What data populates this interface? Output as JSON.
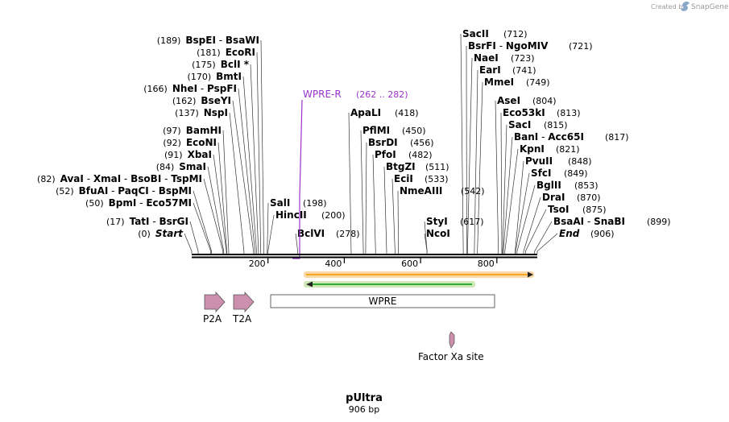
{
  "watermark": {
    "prefix": "Created by",
    "brand": "SnapGene"
  },
  "title": "pUltra",
  "subtitle": "906 bp",
  "sequence_length": 906,
  "axis_ticks": [
    "200",
    "400",
    "600",
    "800"
  ],
  "primer": {
    "name": "WPRE-R",
    "range": "(262 .. 282)",
    "color": "#9933cc"
  },
  "left_labels": [
    {
      "position": "(189)",
      "parts": [
        "BspEI",
        "BsaWI"
      ]
    },
    {
      "position": "(181)",
      "parts": [
        "EcoRI"
      ]
    },
    {
      "position": "(175)",
      "parts": [
        "BclI"
      ],
      "mark": "*"
    },
    {
      "position": "(170)",
      "parts": [
        "BmtI"
      ]
    },
    {
      "position": "(166)",
      "parts": [
        "NheI",
        "PspFI"
      ]
    },
    {
      "position": "(162)",
      "parts": [
        "BseYI"
      ]
    },
    {
      "position": "(137)",
      "parts": [
        "NspI"
      ]
    },
    {
      "position": "(97)",
      "parts": [
        "BamHI"
      ]
    },
    {
      "position": "(92)",
      "parts": [
        "EcoNI"
      ]
    },
    {
      "position": "(91)",
      "parts": [
        "XbaI"
      ]
    },
    {
      "position": "(84)",
      "parts": [
        "SmaI"
      ]
    },
    {
      "position": "(82)",
      "parts": [
        "AvaI",
        "XmaI",
        "BsoBI",
        "TspMI"
      ]
    },
    {
      "position": "(52)",
      "parts": [
        "BfuAI",
        "PaqCI",
        "BspMI"
      ]
    },
    {
      "position": "(50)",
      "parts": [
        "BpmI",
        "Eco57MI"
      ]
    },
    {
      "position": "(17)",
      "parts": [
        "TatI",
        "BsrGI"
      ]
    },
    {
      "position": "(0)",
      "parts": [
        "Start"
      ],
      "italic": true
    }
  ],
  "mid_labels": [
    {
      "parts": [
        "SalI"
      ],
      "position": "(198)"
    },
    {
      "parts": [
        "HincII"
      ],
      "position": "(200)"
    },
    {
      "parts": [
        "BclVI"
      ],
      "position": "(278)"
    }
  ],
  "center_labels": [
    {
      "parts": [
        "ApaLI"
      ],
      "position": "(418)"
    },
    {
      "parts": [
        "PflMI"
      ],
      "position": "(450)"
    },
    {
      "parts": [
        "BsrDI"
      ],
      "position": "(456)"
    },
    {
      "parts": [
        "PfoI"
      ],
      "position": "(482)"
    },
    {
      "parts": [
        "BtgZI"
      ],
      "position": "(511)"
    },
    {
      "parts": [
        "EciI"
      ],
      "position": "(533)"
    },
    {
      "parts": [
        "NmeAIII"
      ],
      "position": "(542)"
    },
    {
      "parts": [
        "StyI"
      ],
      "position": "(617)"
    },
    {
      "parts": [
        "NcoI"
      ],
      "position": ""
    }
  ],
  "right_labels": [
    {
      "parts": [
        "SacII"
      ],
      "position": "(712)"
    },
    {
      "parts": [
        "BsrFI",
        "NgoMIV"
      ],
      "position": "(721)"
    },
    {
      "parts": [
        "NaeI"
      ],
      "position": "(723)"
    },
    {
      "parts": [
        "EarI"
      ],
      "position": "(741)"
    },
    {
      "parts": [
        "MmeI"
      ],
      "position": "(749)"
    },
    {
      "parts": [
        "AseI"
      ],
      "position": "(804)"
    },
    {
      "parts": [
        "Eco53kI"
      ],
      "position": "(813)"
    },
    {
      "parts": [
        "SacI"
      ],
      "position": "(815)"
    },
    {
      "parts": [
        "BanI",
        "Acc65I"
      ],
      "position": "(817)"
    },
    {
      "parts": [
        "KpnI"
      ],
      "position": "(821)"
    },
    {
      "parts": [
        "PvuII"
      ],
      "position": "(848)"
    },
    {
      "parts": [
        "SfcI"
      ],
      "position": "(849)"
    },
    {
      "parts": [
        "BglII"
      ],
      "position": "(853)"
    },
    {
      "parts": [
        "DraI"
      ],
      "position": "(870)"
    },
    {
      "parts": [
        "TsoI"
      ],
      "position": "(875)"
    },
    {
      "parts": [
        "BsaAI",
        "SnaBI"
      ],
      "position": "(899)"
    },
    {
      "parts": [
        "End"
      ],
      "position": "(906)",
      "italic": true
    }
  ],
  "features": {
    "p2a": "P2A",
    "t2a": "T2A",
    "wpre": "WPRE",
    "factor_xa": "Factor Xa site"
  },
  "colors": {
    "orf_orange": "#f5a623",
    "orf_green": "#33aa33",
    "feature_pink": "#cc8fae",
    "primer_purple": "#9933cc",
    "watermark": "#999999"
  }
}
